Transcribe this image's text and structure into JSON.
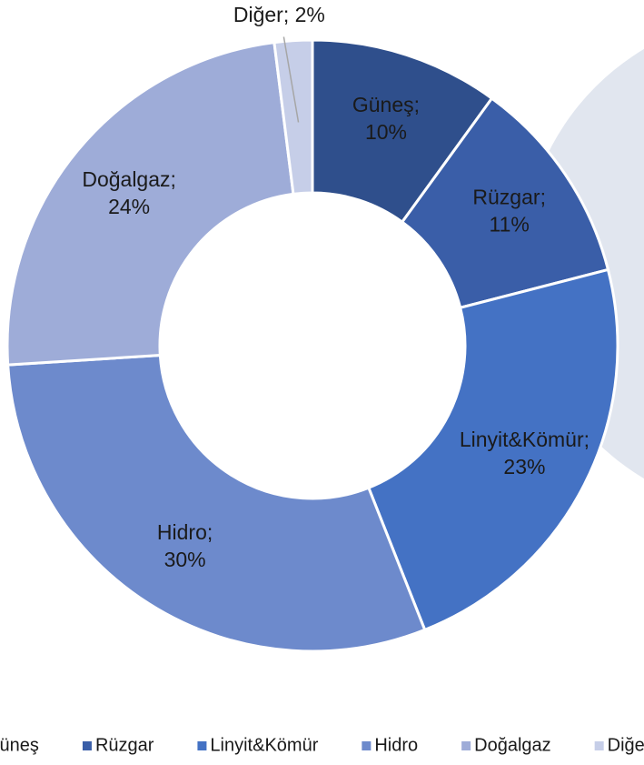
{
  "chart_data": {
    "type": "donut",
    "categories": [
      "Güneş",
      "Rüzgar",
      "Linyit&Kömür",
      "Hidro",
      "Doğalgaz",
      "Diğer"
    ],
    "values": [
      10,
      11,
      23,
      30,
      24,
      2
    ],
    "value_labels": [
      "10%",
      "11%",
      "23%",
      "30%",
      "24%",
      "2%"
    ],
    "colors": [
      "#2f4f8c",
      "#3a5ea8",
      "#4472c4",
      "#6d8acc",
      "#9eacd8",
      "#c6cee8"
    ],
    "legend": "bottom"
  }
}
